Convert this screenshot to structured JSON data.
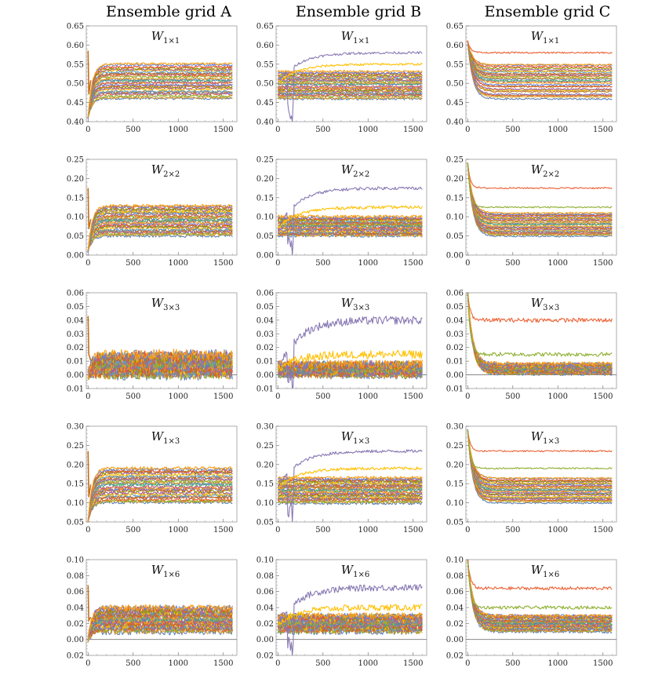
{
  "figure": {
    "column_titles": [
      "Ensemble grid A",
      "Ensemble grid B",
      "Ensemble grid C"
    ]
  },
  "palette": [
    "#5e81b5",
    "#e19c24",
    "#8fb032",
    "#eb6235",
    "#8778b3",
    "#c56e1a",
    "#5d9ec7",
    "#ffbf00",
    "#a5609d",
    "#929600",
    "#e95536",
    "#6685d9",
    "#f89f13",
    "#bc5b80",
    "#47b66d"
  ],
  "chart_data": [
    {
      "type": "line",
      "grid": "Ensemble grid A",
      "title": "W",
      "title_subscript": "1×1",
      "ylim": [
        0.4,
        0.65
      ],
      "yticks": [
        0.4,
        0.45,
        0.5,
        0.55,
        0.6,
        0.65
      ],
      "ytick_labels": [
        "0.40",
        "0.45",
        "0.50",
        "0.55",
        "0.60",
        "0.65"
      ],
      "xlim": [
        -20,
        1650
      ],
      "xticks": [
        0,
        500,
        1000,
        1500
      ],
      "xtick_labels": [
        "0",
        "500",
        "1000",
        "1500"
      ],
      "n_series": 28,
      "series_range": [
        0.46,
        0.55
      ],
      "start_value": 0.41,
      "spike_value": 0.585,
      "behavior": "rise",
      "noise": 0.003,
      "zero_line": false
    },
    {
      "type": "line",
      "grid": "Ensemble grid B",
      "title": "W",
      "title_subscript": "1×1",
      "ylim": [
        0.4,
        0.65
      ],
      "yticks": [
        0.4,
        0.45,
        0.5,
        0.55,
        0.6,
        0.65
      ],
      "ytick_labels": [
        "0.40",
        "0.45",
        "0.50",
        "0.55",
        "0.60",
        "0.65"
      ],
      "xlim": [
        -20,
        1650
      ],
      "xticks": [
        0,
        500,
        1000,
        1500
      ],
      "xtick_labels": [
        "0",
        "500",
        "1000",
        "1500"
      ],
      "n_series": 28,
      "series_range": [
        0.46,
        0.53
      ],
      "start_value": 0.5,
      "outliers": [
        {
          "value": 0.58,
          "color_index": 4
        },
        {
          "value": 0.55,
          "color_index": 7
        }
      ],
      "behavior": "flat",
      "noise": 0.003,
      "zero_line": false
    },
    {
      "type": "line",
      "grid": "Ensemble grid C",
      "title": "W",
      "title_subscript": "1×1",
      "ylim": [
        0.4,
        0.65
      ],
      "yticks": [
        0.4,
        0.45,
        0.5,
        0.55,
        0.6,
        0.65
      ],
      "ytick_labels": [
        "0.40",
        "0.45",
        "0.50",
        "0.55",
        "0.60",
        "0.65"
      ],
      "xlim": [
        -20,
        1650
      ],
      "xticks": [
        0,
        500,
        1000,
        1500
      ],
      "xtick_labels": [
        "0",
        "500",
        "1000",
        "1500"
      ],
      "n_series": 28,
      "series_range": [
        0.46,
        0.55
      ],
      "start_value": 0.61,
      "outliers": [
        {
          "value": 0.58,
          "color_index": 3
        }
      ],
      "behavior": "decay",
      "noise": 0.002,
      "zero_line": false
    },
    {
      "type": "line",
      "grid": "Ensemble grid A",
      "title": "W",
      "title_subscript": "2×2",
      "ylim": [
        0.0,
        0.25
      ],
      "yticks": [
        0.0,
        0.05,
        0.1,
        0.15,
        0.2,
        0.25
      ],
      "ytick_labels": [
        "0.00",
        "0.05",
        "0.10",
        "0.15",
        "0.20",
        "0.25"
      ],
      "xlim": [
        -20,
        1650
      ],
      "xticks": [
        0,
        500,
        1000,
        1500
      ],
      "xtick_labels": [
        "0",
        "500",
        "1000",
        "1500"
      ],
      "n_series": 28,
      "series_range": [
        0.05,
        0.13
      ],
      "start_value": 0.01,
      "spike_value": 0.175,
      "behavior": "rise",
      "noise": 0.004,
      "zero_line": false
    },
    {
      "type": "line",
      "grid": "Ensemble grid B",
      "title": "W",
      "title_subscript": "2×2",
      "ylim": [
        0.0,
        0.25
      ],
      "yticks": [
        0.0,
        0.05,
        0.1,
        0.15,
        0.2,
        0.25
      ],
      "ytick_labels": [
        "0.00",
        "0.05",
        "0.10",
        "0.15",
        "0.20",
        "0.25"
      ],
      "xlim": [
        -20,
        1650
      ],
      "xticks": [
        0,
        500,
        1000,
        1500
      ],
      "xtick_labels": [
        "0",
        "500",
        "1000",
        "1500"
      ],
      "n_series": 28,
      "series_range": [
        0.05,
        0.1
      ],
      "start_value": 0.07,
      "outliers": [
        {
          "value": 0.175,
          "color_index": 4
        },
        {
          "value": 0.125,
          "color_index": 7
        }
      ],
      "behavior": "flat",
      "noise": 0.004,
      "zero_line": false
    },
    {
      "type": "line",
      "grid": "Ensemble grid C",
      "title": "W",
      "title_subscript": "2×2",
      "ylim": [
        0.0,
        0.25
      ],
      "yticks": [
        0.0,
        0.05,
        0.1,
        0.15,
        0.2,
        0.25
      ],
      "ytick_labels": [
        "0.00",
        "0.05",
        "0.10",
        "0.15",
        "0.20",
        "0.25"
      ],
      "xlim": [
        -20,
        1650
      ],
      "xticks": [
        0,
        500,
        1000,
        1500
      ],
      "xtick_labels": [
        "0",
        "500",
        "1000",
        "1500"
      ],
      "n_series": 28,
      "series_range": [
        0.05,
        0.11
      ],
      "start_value": 0.24,
      "outliers": [
        {
          "value": 0.175,
          "color_index": 3
        },
        {
          "value": 0.125,
          "color_index": 2
        }
      ],
      "behavior": "decay",
      "noise": 0.002,
      "zero_line": false
    },
    {
      "type": "line",
      "grid": "Ensemble grid A",
      "title": "W",
      "title_subscript": "3×3",
      "ylim": [
        -0.01,
        0.06
      ],
      "yticks": [
        -0.01,
        0.0,
        0.01,
        0.02,
        0.03,
        0.04,
        0.05,
        0.06
      ],
      "ytick_labels": [
        "0.01",
        "0.00",
        "0.01",
        "0.02",
        "0.03",
        "0.04",
        "0.05",
        "0.06"
      ],
      "xlim": [
        -20,
        1650
      ],
      "xticks": [
        0,
        500,
        1000,
        1500
      ],
      "xtick_labels": [
        "0",
        "500",
        "1000",
        "1500"
      ],
      "n_series": 28,
      "series_range": [
        0.0,
        0.015
      ],
      "start_value": 0.0,
      "spike_value": 0.043,
      "behavior": "rise",
      "noise": 0.004,
      "zero_line": true
    },
    {
      "type": "line",
      "grid": "Ensemble grid B",
      "title": "W",
      "title_subscript": "3×3",
      "ylim": [
        -0.01,
        0.06
      ],
      "yticks": [
        -0.01,
        0.0,
        0.01,
        0.02,
        0.03,
        0.04,
        0.05,
        0.06
      ],
      "ytick_labels": [
        "0.01",
        "0.00",
        "0.01",
        "0.02",
        "0.03",
        "0.04",
        "0.05",
        "0.06"
      ],
      "xlim": [
        -20,
        1650
      ],
      "xticks": [
        0,
        500,
        1000,
        1500
      ],
      "xtick_labels": [
        "0",
        "500",
        "1000",
        "1500"
      ],
      "n_series": 28,
      "series_range": [
        0.0,
        0.008
      ],
      "start_value": 0.004,
      "outliers": [
        {
          "value": 0.04,
          "color_index": 4
        },
        {
          "value": 0.015,
          "color_index": 7
        }
      ],
      "behavior": "flat",
      "noise": 0.003,
      "zero_line": true
    },
    {
      "type": "line",
      "grid": "Ensemble grid C",
      "title": "W",
      "title_subscript": "3×3",
      "ylim": [
        -0.01,
        0.06
      ],
      "yticks": [
        -0.01,
        0.0,
        0.01,
        0.02,
        0.03,
        0.04,
        0.05,
        0.06
      ],
      "ytick_labels": [
        "0.01",
        "0.00",
        "0.01",
        "0.02",
        "0.03",
        "0.04",
        "0.05",
        "0.06"
      ],
      "xlim": [
        -20,
        1650
      ],
      "xticks": [
        0,
        500,
        1000,
        1500
      ],
      "xtick_labels": [
        "0",
        "500",
        "1000",
        "1500"
      ],
      "n_series": 28,
      "series_range": [
        0.001,
        0.008
      ],
      "start_value": 0.06,
      "outliers": [
        {
          "value": 0.04,
          "color_index": 3
        },
        {
          "value": 0.015,
          "color_index": 2
        }
      ],
      "behavior": "decay",
      "noise": 0.0015,
      "zero_line": true
    },
    {
      "type": "line",
      "grid": "Ensemble grid A",
      "title": "W",
      "title_subscript": "1×3",
      "ylim": [
        0.05,
        0.3
      ],
      "yticks": [
        0.05,
        0.1,
        0.15,
        0.2,
        0.25,
        0.3
      ],
      "ytick_labels": [
        "0.05",
        "0.10",
        "0.15",
        "0.20",
        "0.25",
        "0.30"
      ],
      "xlim": [
        -20,
        1650
      ],
      "xticks": [
        0,
        500,
        1000,
        1500
      ],
      "xtick_labels": [
        "0",
        "500",
        "1000",
        "1500"
      ],
      "n_series": 28,
      "series_range": [
        0.1,
        0.19
      ],
      "start_value": 0.05,
      "spike_value": 0.235,
      "behavior": "rise",
      "noise": 0.004,
      "zero_line": false
    },
    {
      "type": "line",
      "grid": "Ensemble grid B",
      "title": "W",
      "title_subscript": "1×3",
      "ylim": [
        0.05,
        0.3
      ],
      "yticks": [
        0.05,
        0.1,
        0.15,
        0.2,
        0.25,
        0.3
      ],
      "ytick_labels": [
        "0.05",
        "0.10",
        "0.15",
        "0.20",
        "0.25",
        "0.30"
      ],
      "xlim": [
        -20,
        1650
      ],
      "xticks": [
        0,
        500,
        1000,
        1500
      ],
      "xtick_labels": [
        "0",
        "500",
        "1000",
        "1500"
      ],
      "n_series": 28,
      "series_range": [
        0.1,
        0.165
      ],
      "start_value": 0.14,
      "outliers": [
        {
          "value": 0.235,
          "color_index": 4
        },
        {
          "value": 0.19,
          "color_index": 7
        }
      ],
      "behavior": "flat",
      "noise": 0.004,
      "zero_line": false
    },
    {
      "type": "line",
      "grid": "Ensemble grid C",
      "title": "W",
      "title_subscript": "1×3",
      "ylim": [
        0.05,
        0.3
      ],
      "yticks": [
        0.05,
        0.1,
        0.15,
        0.2,
        0.25,
        0.3
      ],
      "ytick_labels": [
        "0.05",
        "0.10",
        "0.15",
        "0.20",
        "0.25",
        "0.30"
      ],
      "xlim": [
        -20,
        1650
      ],
      "xticks": [
        0,
        500,
        1000,
        1500
      ],
      "xtick_labels": [
        "0",
        "500",
        "1000",
        "1500"
      ],
      "n_series": 28,
      "series_range": [
        0.1,
        0.165
      ],
      "start_value": 0.29,
      "outliers": [
        {
          "value": 0.235,
          "color_index": 3
        },
        {
          "value": 0.19,
          "color_index": 2
        }
      ],
      "behavior": "decay",
      "noise": 0.002,
      "zero_line": false
    },
    {
      "type": "line",
      "grid": "Ensemble grid A",
      "title": "W",
      "title_subscript": "1×6",
      "ylim": [
        -0.02,
        0.1
      ],
      "yticks": [
        -0.02,
        0.0,
        0.02,
        0.04,
        0.06,
        0.08,
        0.1
      ],
      "ytick_labels": [
        "0.02",
        "0.00",
        "0.02",
        "0.04",
        "0.06",
        "0.08",
        "0.10"
      ],
      "xlim": [
        -20,
        1650
      ],
      "xticks": [
        0,
        500,
        1000,
        1500
      ],
      "xtick_labels": [
        "0",
        "500",
        "1000",
        "1500"
      ],
      "n_series": 28,
      "series_range": [
        0.01,
        0.04
      ],
      "start_value": 0.0,
      "spike_value": 0.068,
      "behavior": "rise",
      "noise": 0.004,
      "zero_line": true
    },
    {
      "type": "line",
      "grid": "Ensemble grid B",
      "title": "W",
      "title_subscript": "1×6",
      "ylim": [
        -0.02,
        0.1
      ],
      "yticks": [
        -0.02,
        0.0,
        0.02,
        0.04,
        0.06,
        0.08,
        0.1
      ],
      "ytick_labels": [
        "0.02",
        "0.00",
        "0.02",
        "0.04",
        "0.06",
        "0.08",
        "0.10"
      ],
      "xlim": [
        -20,
        1650
      ],
      "xticks": [
        0,
        500,
        1000,
        1500
      ],
      "xtick_labels": [
        "0",
        "500",
        "1000",
        "1500"
      ],
      "n_series": 28,
      "series_range": [
        0.01,
        0.03
      ],
      "start_value": 0.02,
      "outliers": [
        {
          "value": 0.065,
          "color_index": 4
        },
        {
          "value": 0.04,
          "color_index": 7
        }
      ],
      "behavior": "flat",
      "noise": 0.004,
      "zero_line": true
    },
    {
      "type": "line",
      "grid": "Ensemble grid C",
      "title": "W",
      "title_subscript": "1×6",
      "ylim": [
        -0.02,
        0.1
      ],
      "yticks": [
        -0.02,
        0.0,
        0.02,
        0.04,
        0.06,
        0.08,
        0.1
      ],
      "ytick_labels": [
        "0.02",
        "0.00",
        "0.02",
        "0.04",
        "0.06",
        "0.08",
        "0.10"
      ],
      "xlim": [
        -20,
        1650
      ],
      "xticks": [
        0,
        500,
        1000,
        1500
      ],
      "xtick_labels": [
        "0",
        "500",
        "1000",
        "1500"
      ],
      "n_series": 28,
      "series_range": [
        0.01,
        0.03
      ],
      "start_value": 0.1,
      "outliers": [
        {
          "value": 0.064,
          "color_index": 3
        },
        {
          "value": 0.04,
          "color_index": 2
        }
      ],
      "behavior": "decay",
      "noise": 0.002,
      "zero_line": true
    }
  ]
}
